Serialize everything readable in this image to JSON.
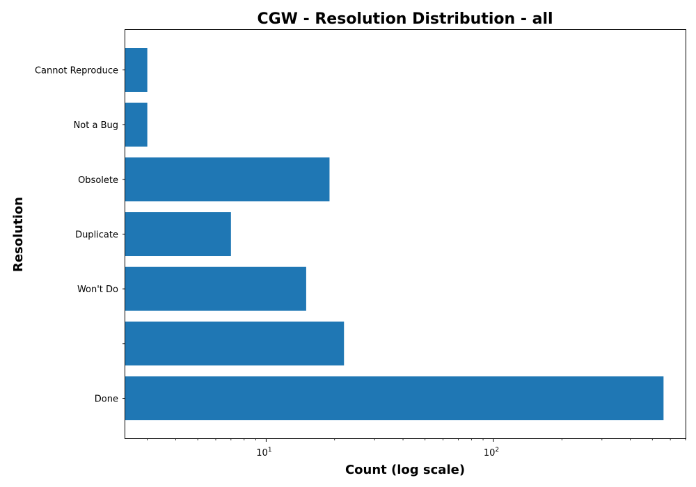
{
  "chart_data": {
    "type": "bar",
    "orientation": "horizontal",
    "title": "CGW - Resolution Distribution - all",
    "xlabel": "Count (log scale)",
    "ylabel": "Resolution",
    "x_scale": "log",
    "xlim": [
      2.4,
      700
    ],
    "x_ticks": [
      {
        "value": 10,
        "base": "10",
        "exp": "1"
      },
      {
        "value": 100,
        "base": "10",
        "exp": "2"
      }
    ],
    "categories": [
      "Done",
      "",
      "Won't Do",
      "Duplicate",
      "Obsolete",
      "Not a Bug",
      "Cannot Reproduce"
    ],
    "values": [
      560,
      22,
      15,
      7,
      19,
      3,
      3
    ],
    "bar_color": "#1f77b4",
    "grid": false,
    "legend": "none"
  }
}
